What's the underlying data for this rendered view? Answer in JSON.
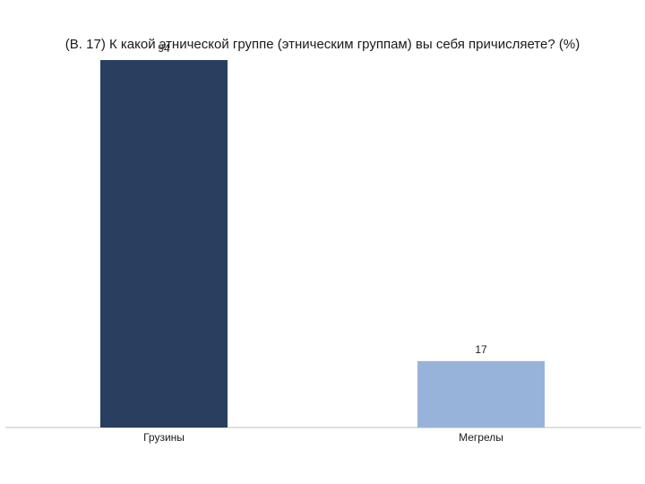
{
  "chart_data": {
    "type": "bar",
    "title": "(В. 17)  К какой этнической группе (этническим группам) вы себя причисляете? (%)",
    "categories": [
      "Грузины",
      "Мегрелы"
    ],
    "values": [
      94,
      17
    ],
    "data_labels": [
      "94",
      "17"
    ],
    "colors": [
      "#283f5f",
      "#97b3d9"
    ],
    "ylim": [
      0,
      94
    ],
    "xlabel": "",
    "ylabel": "",
    "grid": false,
    "legend": "none"
  }
}
